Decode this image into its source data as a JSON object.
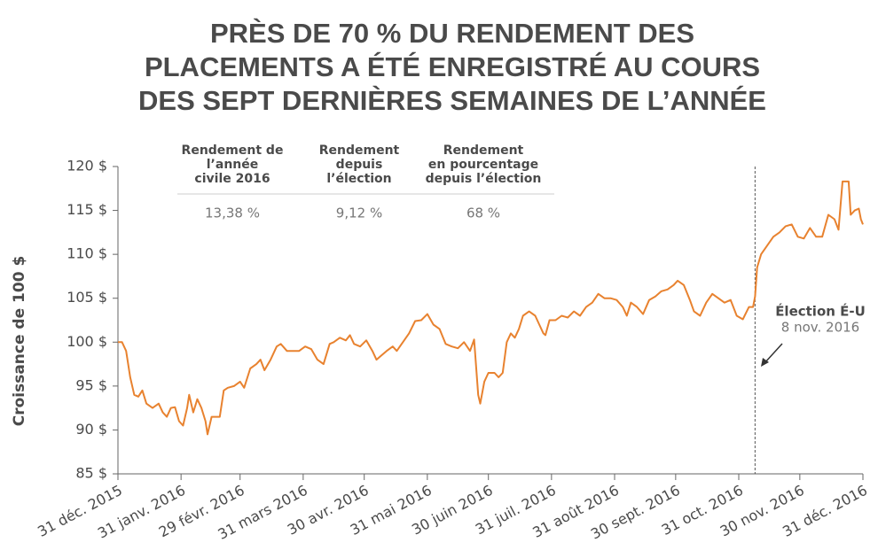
{
  "chart_data": {
    "type": "line",
    "title_lines": [
      "PRÈS DE 70 % DU RENDEMENT DES",
      "PLACEMENTS A ÉTÉ ENREGISTRÉ AU COURS",
      "DES SEPT DERNIÈRES SEMAINES DE L’ANNÉE"
    ],
    "ylabel": "Croissance de 100 $",
    "table": {
      "headers": [
        [
          "Rendement de",
          "l’année",
          "civile 2016"
        ],
        [
          "Rendement",
          "depuis",
          "l’élection"
        ],
        [
          "Rendement",
          "en pourcentage",
          "depuis l’élection"
        ]
      ],
      "values": [
        "13,38 %",
        "9,12 %",
        "68 %"
      ]
    },
    "annotation": {
      "title": "Élection É-U",
      "date": "8 nov. 2016",
      "x": 313
    },
    "x": [
      0,
      2,
      4,
      6,
      8,
      10,
      12,
      14,
      17,
      20,
      22,
      24,
      26,
      28,
      30,
      32,
      34,
      35,
      37,
      39,
      41,
      43,
      44,
      46,
      50,
      52,
      54,
      57,
      60,
      62,
      65,
      68,
      70,
      72,
      75,
      78,
      80,
      83,
      86,
      89,
      92,
      95,
      98,
      101,
      104,
      106,
      109,
      112,
      114,
      116,
      119,
      122,
      125,
      127,
      129,
      132,
      135,
      137,
      140,
      143,
      146,
      149,
      152,
      155,
      158,
      161,
      164,
      167,
      170,
      173,
      175,
      177,
      178,
      180,
      182,
      185,
      187,
      189,
      191,
      193,
      195,
      197,
      199,
      202,
      205,
      207,
      209,
      210,
      212,
      215,
      218,
      221,
      224,
      227,
      230,
      233,
      236,
      239,
      242,
      245,
      248,
      250,
      252,
      255,
      258,
      261,
      264,
      267,
      270,
      273,
      275,
      278,
      281,
      283,
      286,
      289,
      292,
      295,
      298,
      301,
      304,
      307,
      310,
      312,
      313,
      314,
      316,
      319,
      322,
      325,
      328,
      331,
      334,
      337,
      340,
      343,
      346,
      349,
      352,
      354,
      356,
      359,
      360,
      362,
      364,
      365,
      366
    ],
    "series": [
      {
        "name": "Croissance de 100 $",
        "color": "#e8822f",
        "values": [
          100,
          100,
          99,
          96,
          94,
          93.8,
          94.5,
          93,
          92.5,
          93,
          92,
          91.5,
          92.5,
          92.6,
          91,
          90.5,
          92.5,
          94,
          92,
          93.5,
          92.5,
          91,
          89.5,
          91.5,
          91.5,
          94.5,
          94.8,
          95,
          95.5,
          94.8,
          97,
          97.5,
          98,
          96.8,
          98,
          99.5,
          99.8,
          99,
          99,
          99,
          99.5,
          99.2,
          98,
          97.5,
          99.8,
          100,
          100.5,
          100.2,
          100.8,
          99.8,
          99.5,
          100.2,
          99,
          98,
          98.4,
          99,
          99.5,
          99,
          100,
          101,
          102.4,
          102.5,
          103.2,
          102,
          101.5,
          99.8,
          99.5,
          99.3,
          100,
          99,
          100.3,
          94,
          93,
          95.5,
          96.5,
          96.5,
          96,
          96.5,
          100,
          101,
          100.5,
          101.5,
          103,
          103.5,
          103,
          102,
          101,
          100.8,
          102.5,
          102.5,
          103,
          102.8,
          103.5,
          103,
          104,
          104.5,
          105.5,
          105,
          105,
          104.8,
          104,
          103,
          104.5,
          104,
          103.2,
          104.8,
          105.2,
          105.8,
          106,
          106.5,
          107,
          106.5,
          104.8,
          103.5,
          103,
          104.5,
          105.5,
          105,
          104.5,
          104.8,
          103,
          102.6,
          104,
          104,
          105.2,
          108.5,
          110,
          111,
          112,
          112.5,
          113.2,
          113.4,
          112,
          111.8,
          113,
          112,
          112,
          114.5,
          114,
          112.8,
          118.3,
          118.3,
          114.5,
          115,
          115.2,
          114,
          113.4
        ]
      }
    ],
    "xlim": [
      0,
      366
    ],
    "xticks": [
      {
        "value": 0,
        "label": "31 déc. 2015"
      },
      {
        "value": 31,
        "label": "31 janv. 2016"
      },
      {
        "value": 60,
        "label": "29 févr. 2016"
      },
      {
        "value": 91,
        "label": "31 mars 2016"
      },
      {
        "value": 121,
        "label": "30 avr. 2016"
      },
      {
        "value": 152,
        "label": "31 mai 2016"
      },
      {
        "value": 182,
        "label": "30 juin 2016"
      },
      {
        "value": 213,
        "label": "31 juil. 2016"
      },
      {
        "value": 244,
        "label": "31 août 2016"
      },
      {
        "value": 274,
        "label": "30 sept. 2016"
      },
      {
        "value": 305,
        "label": "31 oct. 2016"
      },
      {
        "value": 335,
        "label": "30 nov. 2016"
      },
      {
        "value": 366,
        "label": "31 déc. 2016"
      }
    ],
    "ylim": [
      85,
      120
    ],
    "yticks": [
      {
        "value": 85,
        "label": "85 $"
      },
      {
        "value": 90,
        "label": "90 $"
      },
      {
        "value": 95,
        "label": "95 $"
      },
      {
        "value": 100,
        "label": "100 $"
      },
      {
        "value": 105,
        "label": "105 $"
      },
      {
        "value": 110,
        "label": "110 $"
      },
      {
        "value": 115,
        "label": "115 $"
      },
      {
        "value": 120,
        "label": "120 $"
      }
    ],
    "grid": false
  }
}
